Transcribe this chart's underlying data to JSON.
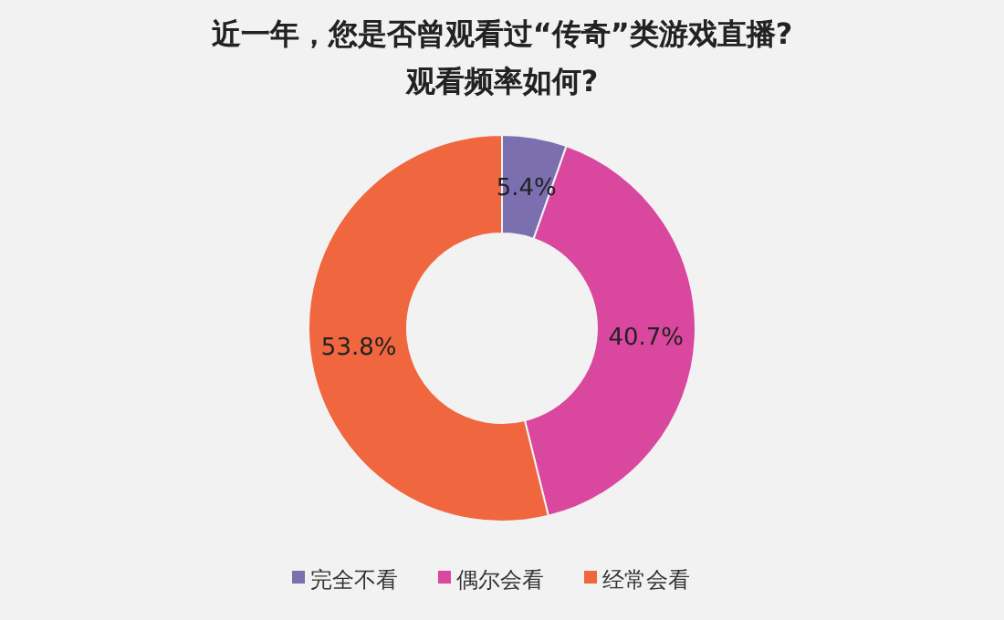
{
  "chart_data": {
    "type": "donut",
    "title": "近一年，您是否曾观看过“传奇”类游戏直播?\n观看频率如何?",
    "categories": [
      "完全不看",
      "偶尔会看",
      "经常会看"
    ],
    "values": [
      5.4,
      40.7,
      53.8
    ],
    "colors": [
      "#7b6fb0",
      "#d9479f",
      "#f0663e"
    ],
    "value_labels": [
      "5.4%",
      "40.7%",
      "53.8%"
    ],
    "legend": "bottom"
  }
}
